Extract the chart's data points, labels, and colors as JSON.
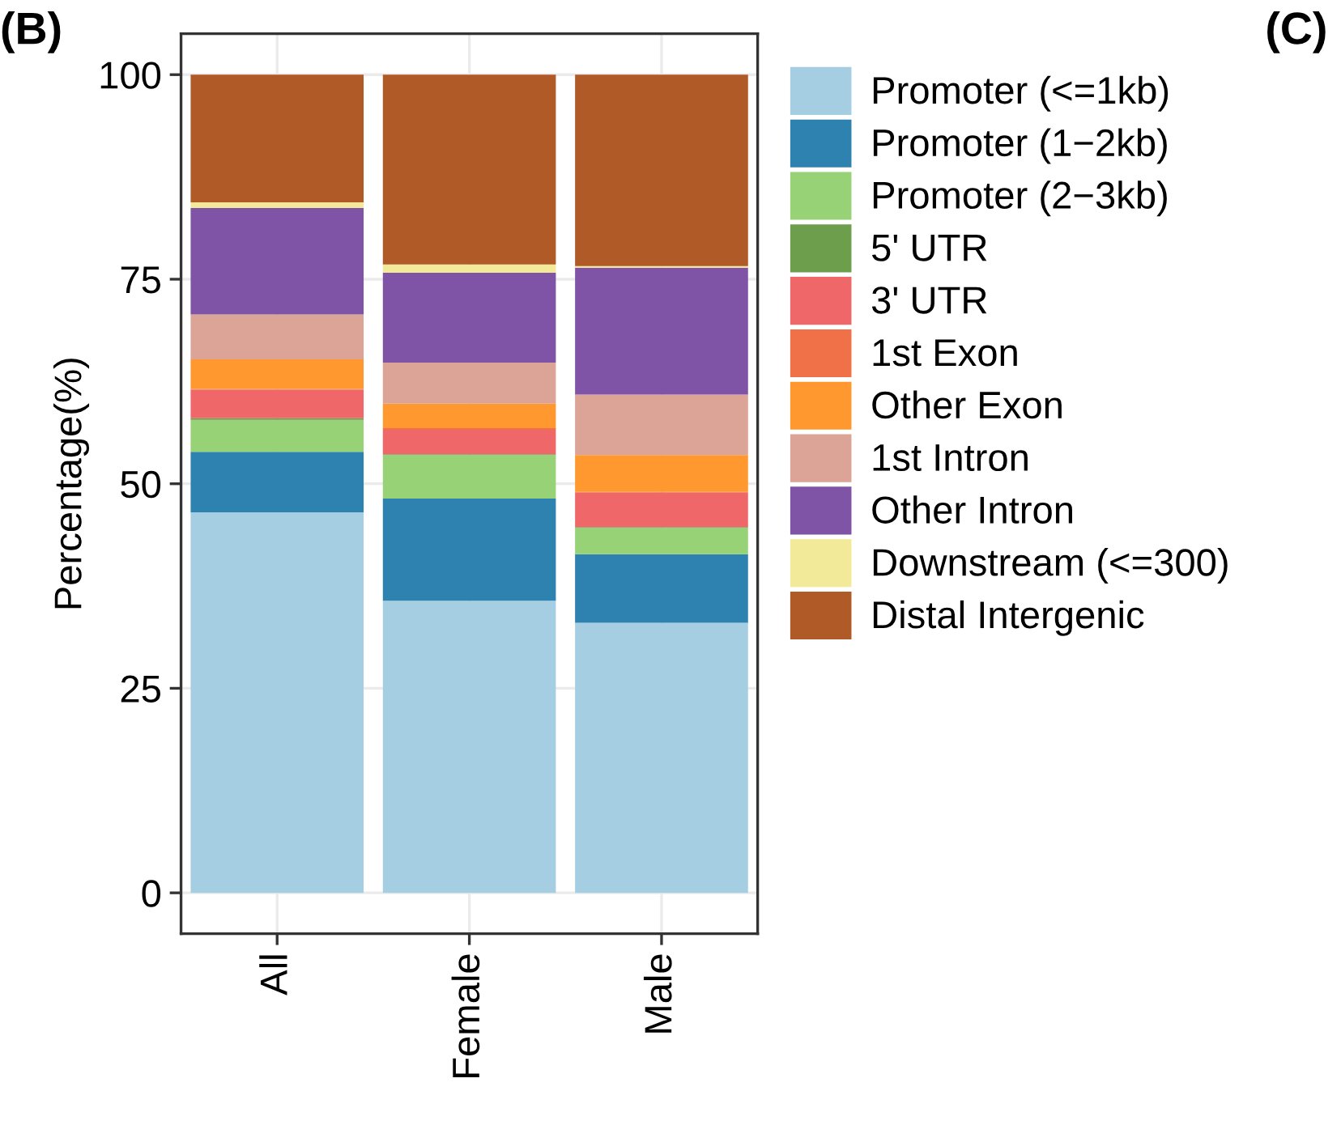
{
  "chart_data": {
    "type": "bar",
    "stacked": true,
    "ylabel": "Percentage(%)",
    "categories": [
      "All",
      "Female",
      "Male"
    ],
    "ylim": [
      -5,
      105
    ],
    "yticks": [
      0,
      25,
      50,
      75,
      100
    ],
    "grid": true,
    "legend": "right",
    "annotations": [
      "(B)",
      "(C)"
    ],
    "series": [
      {
        "name": "Promoter (<=1kb)",
        "color": "#a6cee3",
        "values": [
          46.5,
          35.7,
          33.0
        ]
      },
      {
        "name": "Promoter (1−2kb)",
        "color": "#2e82b0",
        "values": [
          7.4,
          12.5,
          8.4
        ]
      },
      {
        "name": "Promoter (2−3kb)",
        "color": "#98d277",
        "values": [
          3.9,
          5.3,
          3.2
        ]
      },
      {
        "name": "5' UTR",
        "color": "#6c9e4c",
        "values": [
          0.2,
          0.1,
          0.1
        ]
      },
      {
        "name": "3' UTR",
        "color": "#f0676a",
        "values": [
          3.5,
          3.0,
          4.2
        ]
      },
      {
        "name": "1st Exon",
        "color": "#f07048",
        "values": [
          0.1,
          0.2,
          0.1
        ]
      },
      {
        "name": "Other Exon",
        "color": "#ff982e",
        "values": [
          3.6,
          3.0,
          4.5
        ]
      },
      {
        "name": "1st Intron",
        "color": "#dba497",
        "values": [
          5.5,
          5.0,
          7.4
        ]
      },
      {
        "name": "Other Intron",
        "color": "#7f54a6",
        "values": [
          13.0,
          11.0,
          15.5
        ]
      },
      {
        "name": "Downstream (<=300)",
        "color": "#f2ea98",
        "values": [
          0.7,
          1.0,
          0.2
        ]
      },
      {
        "name": "Distal Intergenic",
        "color": "#b05a28",
        "values": [
          15.6,
          23.2,
          23.4
        ]
      }
    ]
  }
}
